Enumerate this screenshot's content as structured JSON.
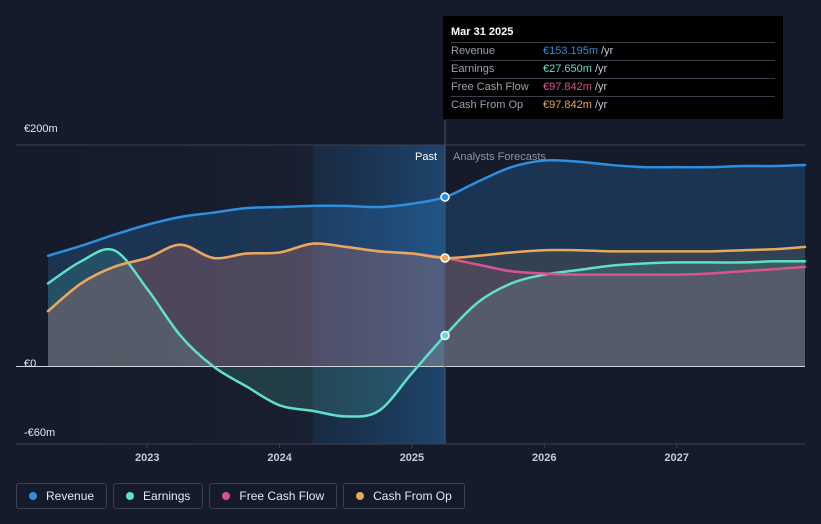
{
  "tooltip": {
    "date": "Mar 31 2025",
    "rows": [
      {
        "label": "Revenue",
        "value": "€153.195m",
        "unit": "/yr",
        "color": "#2e8ee0"
      },
      {
        "label": "Earnings",
        "value": "€27.650m",
        "unit": "/yr",
        "color": "#5fe0c8"
      },
      {
        "label": "Free Cash Flow",
        "value": "€97.842m",
        "unit": "/yr",
        "color": "#d8548d"
      },
      {
        "label": "Cash From Op",
        "value": "€97.842m",
        "unit": "/yr",
        "color": "#e8a95c"
      }
    ]
  },
  "chart_data": {
    "type": "line",
    "title": "",
    "ylim": [
      -60,
      200
    ],
    "y_tick_labels": [
      "€200m",
      "€0",
      "-€60m"
    ],
    "x_tick_labels": [
      "2023",
      "2024",
      "2025",
      "2026",
      "2027"
    ],
    "x_ticks": [
      2023,
      2024,
      2025,
      2026,
      2027
    ],
    "xlim": [
      2022.25,
      2027.97
    ],
    "past_label": "Past",
    "forecast_label": "Analysts Forecasts",
    "divider_x": 2025.25,
    "highlight_start": 2024.25,
    "series": [
      {
        "name": "Revenue",
        "color": "#2e8ee0",
        "x": [
          2022.25,
          2022.5,
          2022.75,
          2023.0,
          2023.25,
          2023.5,
          2023.75,
          2024.0,
          2024.25,
          2024.5,
          2024.75,
          2025.0,
          2025.25,
          2025.5,
          2025.75,
          2026.0,
          2026.25,
          2026.5,
          2026.75,
          2027.0,
          2027.25,
          2027.5,
          2027.75,
          2027.97
        ],
        "y": [
          100,
          109,
          119,
          128,
          135,
          139,
          143,
          144,
          145,
          145,
          144,
          147,
          153,
          167,
          180,
          186,
          185,
          182,
          180,
          180,
          180,
          181,
          181,
          182
        ]
      },
      {
        "name": "Earnings",
        "color": "#5fe0c8",
        "x": [
          2022.25,
          2022.5,
          2022.75,
          2023.0,
          2023.25,
          2023.5,
          2023.75,
          2024.0,
          2024.25,
          2024.5,
          2024.75,
          2025.0,
          2025.25,
          2025.5,
          2025.75,
          2026.0,
          2026.25,
          2026.5,
          2026.75,
          2027.0,
          2027.25,
          2027.5,
          2027.75,
          2027.97
        ],
        "y": [
          75,
          95,
          105,
          70,
          28,
          0,
          -18,
          -35,
          -40,
          -45,
          -40,
          -6,
          28,
          58,
          75,
          83,
          87,
          91,
          93,
          94,
          94,
          94,
          95,
          95
        ]
      },
      {
        "name": "Free Cash Flow",
        "color": "#d8548d",
        "x": [
          2022.25,
          2022.5,
          2022.75,
          2023.0,
          2023.25,
          2023.5,
          2023.75,
          2024.0,
          2024.25,
          2024.5,
          2024.75,
          2025.0,
          2025.25,
          2025.5,
          2025.75,
          2026.0,
          2026.25,
          2026.5,
          2026.75,
          2027.0,
          2027.25,
          2027.5,
          2027.75,
          2027.97
        ],
        "y": [
          50,
          75,
          90,
          98,
          110,
          98,
          102,
          103,
          111,
          108,
          104,
          102,
          98,
          92,
          86,
          84,
          83,
          83,
          83,
          83,
          84,
          86,
          88,
          90
        ]
      },
      {
        "name": "Cash From Op",
        "color": "#e8a95c",
        "x": [
          2022.25,
          2022.5,
          2022.75,
          2023.0,
          2023.25,
          2023.5,
          2023.75,
          2024.0,
          2024.25,
          2024.5,
          2024.75,
          2025.0,
          2025.25,
          2025.5,
          2025.75,
          2026.0,
          2026.25,
          2026.5,
          2026.75,
          2027.0,
          2027.25,
          2027.5,
          2027.75,
          2027.97
        ],
        "y": [
          50,
          75,
          90,
          98,
          110,
          98,
          102,
          103,
          111,
          108,
          104,
          102,
          98,
          100,
          103,
          105,
          105,
          104,
          104,
          104,
          104,
          105,
          106,
          108
        ]
      }
    ],
    "markers": [
      {
        "series": "Revenue",
        "x": 2025.25,
        "y": 153,
        "color": "#2e8ee0"
      },
      {
        "series": "Cash From Op",
        "x": 2025.25,
        "y": 98,
        "color": "#e8a95c"
      },
      {
        "series": "Earnings",
        "x": 2025.25,
        "y": 28,
        "color": "#5fe0c8"
      }
    ]
  },
  "legend": [
    {
      "label": "Revenue",
      "color": "#2e8ee0"
    },
    {
      "label": "Earnings",
      "color": "#5fe0c8"
    },
    {
      "label": "Free Cash Flow",
      "color": "#d8548d"
    },
    {
      "label": "Cash From Op",
      "color": "#e8a95c"
    }
  ]
}
